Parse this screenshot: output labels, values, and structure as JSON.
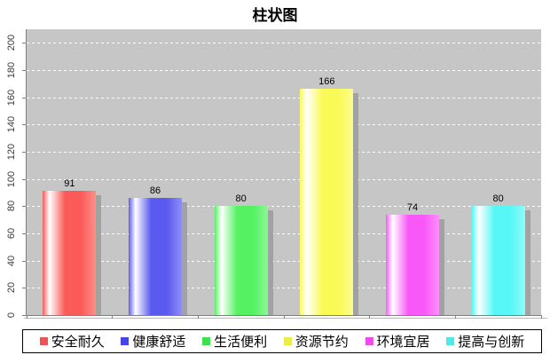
{
  "title": "柱状图",
  "chart_data": {
    "type": "bar",
    "title": "柱状图",
    "categories": [
      "安全耐久",
      "健康舒适",
      "生活便利",
      "资源节约",
      "环境宜居",
      "提高与创新"
    ],
    "values": [
      91,
      86,
      80,
      166,
      74,
      80
    ],
    "value_labels": [
      "91",
      "86",
      "80",
      "166",
      "74",
      "80"
    ],
    "xlabel": "",
    "ylabel": "",
    "ylim": [
      0,
      210
    ],
    "yticks": [
      0,
      20,
      40,
      60,
      80,
      100,
      120,
      140,
      160,
      180,
      200
    ],
    "grid": "horizontal-dashed-white",
    "plot_background": "#c6c6c6",
    "legend_position": "bottom",
    "bar_colors": [
      {
        "main": "#fa5a58",
        "light": "#ff8f88"
      },
      {
        "main": "#5a5af0",
        "light": "#8f8ff6"
      },
      {
        "main": "#55f163",
        "light": "#8cf795"
      },
      {
        "main": "#fafa57",
        "light": "#fcfc90"
      },
      {
        "main": "#f858f8",
        "light": "#fb90fb"
      },
      {
        "main": "#57f7f7",
        "light": "#90fafa"
      }
    ]
  },
  "legend": {
    "items": [
      {
        "label": "安全耐久",
        "color": "#f05251"
      },
      {
        "label": "健康舒适",
        "color": "#4646e6"
      },
      {
        "label": "生活便利",
        "color": "#3fe04d"
      },
      {
        "label": "资源节约",
        "color": "#eded4a"
      },
      {
        "label": "环境宜居",
        "color": "#e94fe9"
      },
      {
        "label": "提高与创新",
        "color": "#4fe9e9"
      }
    ]
  }
}
